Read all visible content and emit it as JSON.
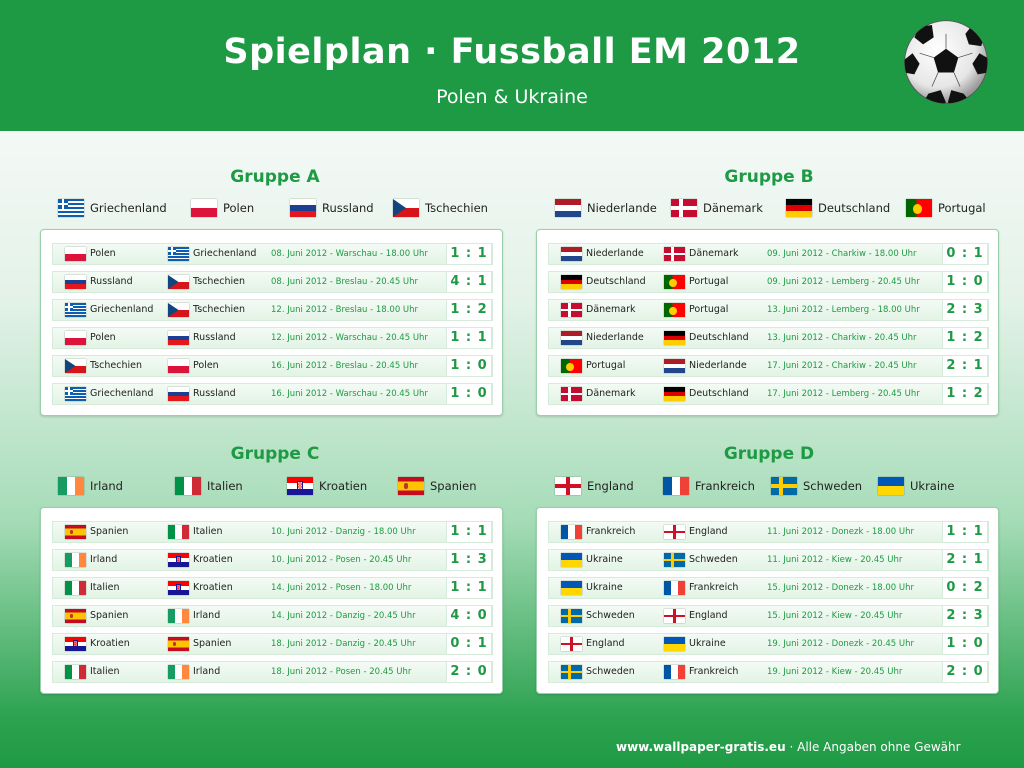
{
  "header": {
    "title": "Spielplan · Fussball EM 2012",
    "subtitle": "Polen & Ukraine"
  },
  "groups": [
    {
      "title": "Gruppe A",
      "teams": [
        {
          "name": "Griechenland",
          "flag": "GR"
        },
        {
          "name": "Polen",
          "flag": "PL"
        },
        {
          "name": "Russland",
          "flag": "RU"
        },
        {
          "name": "Tschechien",
          "flag": "CZ"
        }
      ],
      "matches": [
        {
          "home": "Polen",
          "home_flag": "PL",
          "away": "Griechenland",
          "away_flag": "GR",
          "info": "08. Juni 2012 - Warschau - 18.00 Uhr",
          "score": "1 : 1"
        },
        {
          "home": "Russland",
          "home_flag": "RU",
          "away": "Tschechien",
          "away_flag": "CZ",
          "info": "08. Juni 2012 - Breslau - 20.45 Uhr",
          "score": "4 : 1"
        },
        {
          "home": "Griechenland",
          "home_flag": "GR",
          "away": "Tschechien",
          "away_flag": "CZ",
          "info": "12. Juni 2012 - Breslau - 18.00 Uhr",
          "score": "1 : 2"
        },
        {
          "home": "Polen",
          "home_flag": "PL",
          "away": "Russland",
          "away_flag": "RU",
          "info": "12. Juni 2012 - Warschau - 20.45 Uhr",
          "score": "1 : 1"
        },
        {
          "home": "Tschechien",
          "home_flag": "CZ",
          "away": "Polen",
          "away_flag": "PL",
          "info": "16. Juni 2012 - Breslau - 20.45 Uhr",
          "score": "1 : 0"
        },
        {
          "home": "Griechenland",
          "home_flag": "GR",
          "away": "Russland",
          "away_flag": "RU",
          "info": "16. Juni 2012 - Warschau - 20.45 Uhr",
          "score": "1 : 0"
        }
      ]
    },
    {
      "title": "Gruppe B",
      "teams": [
        {
          "name": "Niederlande",
          "flag": "NL"
        },
        {
          "name": "Dänemark",
          "flag": "DK"
        },
        {
          "name": "Deutschland",
          "flag": "DE"
        },
        {
          "name": "Portugal",
          "flag": "PT"
        }
      ],
      "matches": [
        {
          "home": "Niederlande",
          "home_flag": "NL",
          "away": "Dänemark",
          "away_flag": "DK",
          "info": "09. Juni 2012 - Charkiw - 18.00 Uhr",
          "score": "0 : 1"
        },
        {
          "home": "Deutschland",
          "home_flag": "DE",
          "away": "Portugal",
          "away_flag": "PT",
          "info": "09. Juni 2012 - Lemberg - 20.45 Uhr",
          "score": "1 : 0"
        },
        {
          "home": "Dänemark",
          "home_flag": "DK",
          "away": "Portugal",
          "away_flag": "PT",
          "info": "13. Juni 2012 - Lemberg - 18.00 Uhr",
          "score": "2 : 3"
        },
        {
          "home": "Niederlande",
          "home_flag": "NL",
          "away": "Deutschland",
          "away_flag": "DE",
          "info": "13. Juni 2012 - Charkiw - 20.45 Uhr",
          "score": "1 : 2"
        },
        {
          "home": "Portugal",
          "home_flag": "PT",
          "away": "Niederlande",
          "away_flag": "NL",
          "info": "17. Juni 2012 - Charkiw - 20.45 Uhr",
          "score": "2 : 1"
        },
        {
          "home": "Dänemark",
          "home_flag": "DK",
          "away": "Deutschland",
          "away_flag": "DE",
          "info": "17. Juni 2012 - Lemberg - 20.45 Uhr",
          "score": "1 : 2"
        }
      ]
    },
    {
      "title": "Gruppe C",
      "teams": [
        {
          "name": "Irland",
          "flag": "IE"
        },
        {
          "name": "Italien",
          "flag": "IT"
        },
        {
          "name": "Kroatien",
          "flag": "HR"
        },
        {
          "name": "Spanien",
          "flag": "ES"
        }
      ],
      "matches": [
        {
          "home": "Spanien",
          "home_flag": "ES",
          "away": "Italien",
          "away_flag": "IT",
          "info": "10. Juni 2012 - Danzig - 18.00 Uhr",
          "score": "1 : 1"
        },
        {
          "home": "Irland",
          "home_flag": "IE",
          "away": "Kroatien",
          "away_flag": "HR",
          "info": "10. Juni 2012 - Posen - 20.45 Uhr",
          "score": "1 : 3"
        },
        {
          "home": "Italien",
          "home_flag": "IT",
          "away": "Kroatien",
          "away_flag": "HR",
          "info": "14. Juni 2012 - Posen - 18.00 Uhr",
          "score": "1 : 1"
        },
        {
          "home": "Spanien",
          "home_flag": "ES",
          "away": "Irland",
          "away_flag": "IE",
          "info": "14. Juni 2012 - Danzig - 20.45 Uhr",
          "score": "4 : 0"
        },
        {
          "home": "Kroatien",
          "home_flag": "HR",
          "away": "Spanien",
          "away_flag": "ES",
          "info": "18. Juni 2012 - Danzig - 20.45 Uhr",
          "score": "0 : 1"
        },
        {
          "home": "Italien",
          "home_flag": "IT",
          "away": "Irland",
          "away_flag": "IE",
          "info": "18. Juni 2012 - Posen - 20.45 Uhr",
          "score": "2 : 0"
        }
      ]
    },
    {
      "title": "Gruppe D",
      "teams": [
        {
          "name": "England",
          "flag": "EN"
        },
        {
          "name": "Frankreich",
          "flag": "FR"
        },
        {
          "name": "Schweden",
          "flag": "SE"
        },
        {
          "name": "Ukraine",
          "flag": "UA"
        }
      ],
      "matches": [
        {
          "home": "Frankreich",
          "home_flag": "FR",
          "away": "England",
          "away_flag": "EN",
          "info": "11. Juni 2012 - Donezk - 18.00 Uhr",
          "score": "1 : 1"
        },
        {
          "home": "Ukraine",
          "home_flag": "UA",
          "away": "Schweden",
          "away_flag": "SE",
          "info": "11. Juni 2012 - Kiew - 20.45 Uhr",
          "score": "2 : 1"
        },
        {
          "home": "Ukraine",
          "home_flag": "UA",
          "away": "Frankreich",
          "away_flag": "FR",
          "info": "15. Juni 2012 - Donezk - 18.00 Uhr",
          "score": "0 : 2"
        },
        {
          "home": "Schweden",
          "home_flag": "SE",
          "away": "England",
          "away_flag": "EN",
          "info": "15. Juni 2012 - Kiew - 20.45 Uhr",
          "score": "2 : 3"
        },
        {
          "home": "England",
          "home_flag": "EN",
          "away": "Ukraine",
          "away_flag": "UA",
          "info": "19. Juni 2012 - Donezk - 20.45 Uhr",
          "score": "1 : 0"
        },
        {
          "home": "Schweden",
          "home_flag": "SE",
          "away": "Frankreich",
          "away_flag": "FR",
          "info": "19. Juni 2012 - Kiew - 20.45 Uhr",
          "score": "2 : 0"
        }
      ]
    }
  ],
  "footer": {
    "site": "www.wallpaper-gratis.eu",
    "separator": "·",
    "note": "Alle Angaben ohne Gewähr"
  },
  "colors": {
    "brand_green": "#1e9a45",
    "accent_text": "#1f9a44"
  },
  "icons": {
    "ball": "soccer-ball-icon"
  }
}
